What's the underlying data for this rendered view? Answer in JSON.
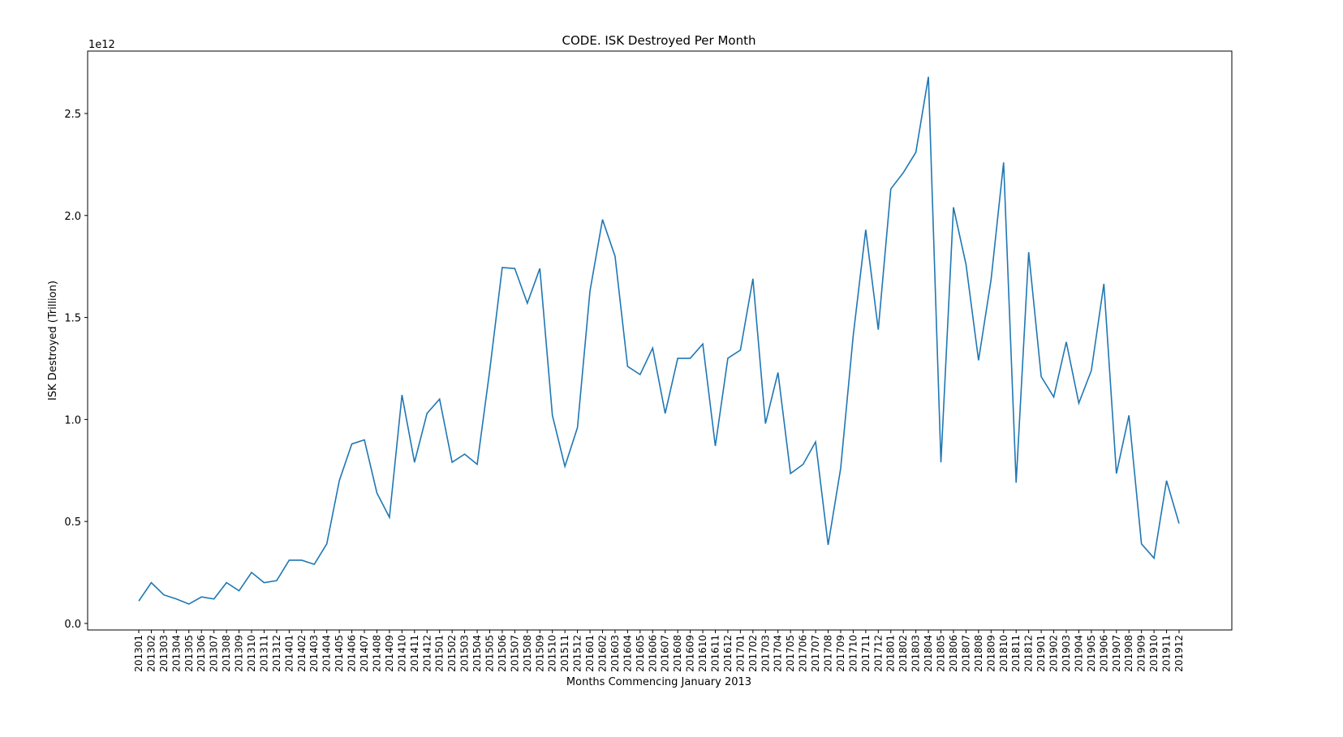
{
  "chart_data": {
    "type": "line",
    "title": "CODE. ISK Destroyed Per Month",
    "x_label": "Months Commencing January 2013",
    "y_label": "ISK Destroyed (Trillion)",
    "y_offset_label": "1e12",
    "categories": [
      "201301",
      "201302",
      "201303",
      "201304",
      "201305",
      "201306",
      "201307",
      "201308",
      "201309",
      "201310",
      "201311",
      "201312",
      "201401",
      "201402",
      "201403",
      "201404",
      "201405",
      "201406",
      "201407",
      "201408",
      "201409",
      "201410",
      "201411",
      "201412",
      "201501",
      "201502",
      "201503",
      "201504",
      "201505",
      "201506",
      "201507",
      "201508",
      "201509",
      "201510",
      "201511",
      "201512",
      "201601",
      "201602",
      "201603",
      "201604",
      "201605",
      "201606",
      "201607",
      "201608",
      "201609",
      "201610",
      "201611",
      "201612",
      "201701",
      "201702",
      "201703",
      "201704",
      "201705",
      "201706",
      "201707",
      "201708",
      "201709",
      "201710",
      "201711",
      "201712",
      "201801",
      "201802",
      "201803",
      "201804",
      "201805",
      "201806",
      "201807",
      "201808",
      "201809",
      "201810",
      "201811",
      "201812",
      "201901",
      "201902",
      "201903",
      "201904",
      "201905",
      "201906",
      "201907",
      "201908",
      "201909",
      "201910",
      "201911",
      "201912"
    ],
    "series": [
      {
        "color": "#1f77b4",
        "values": [
          0.11,
          0.2,
          0.14,
          0.12,
          0.095,
          0.13,
          0.12,
          0.2,
          0.16,
          0.25,
          0.2,
          0.21,
          0.31,
          0.31,
          0.29,
          0.39,
          0.7,
          0.88,
          0.9,
          0.64,
          0.52,
          1.12,
          0.79,
          1.03,
          1.1,
          0.79,
          0.83,
          0.78,
          1.24,
          1.745,
          1.74,
          1.57,
          1.74,
          1.02,
          0.77,
          0.96,
          1.63,
          1.98,
          1.8,
          1.26,
          1.22,
          1.35,
          1.03,
          1.3,
          1.3,
          1.37,
          0.87,
          1.3,
          1.34,
          1.69,
          0.98,
          1.23,
          0.735,
          0.78,
          0.89,
          0.385,
          0.76,
          1.41,
          1.93,
          1.44,
          2.13,
          2.21,
          2.31,
          2.68,
          0.79,
          2.04,
          1.76,
          1.29,
          1.685,
          2.26,
          0.69,
          1.82,
          1.21,
          1.11,
          1.38,
          1.08,
          1.24,
          1.665,
          0.735,
          1.02,
          0.39,
          0.32,
          0.7,
          0.49
        ]
      }
    ],
    "ylim": [
      -0.032,
      2.806
    ],
    "yticks": [
      {
        "value": 0,
        "label": "0.0"
      },
      0.5,
      {
        "value": 1,
        "label": "1.0"
      },
      1.5,
      {
        "value": 2,
        "label": "2.0"
      },
      2.5
    ],
    "grid": false
  }
}
